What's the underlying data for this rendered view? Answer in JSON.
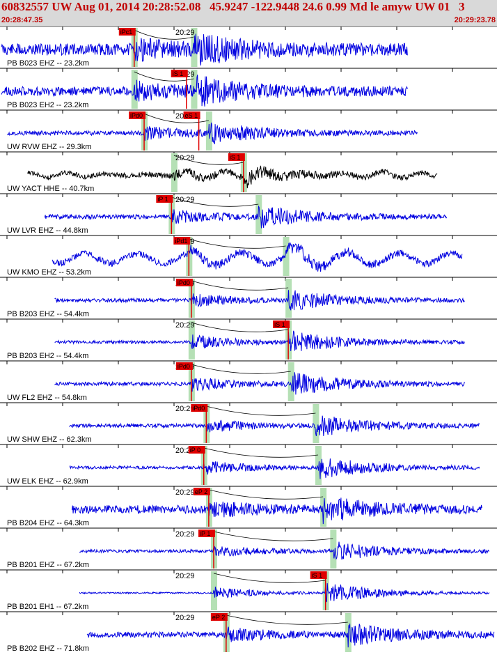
{
  "header": {
    "title": "60832557 UW Aug 01, 2014 20:28:52.08   45.9247 -122.9448 24.6 0.99 Md le amyw UW 01   3",
    "start_time": "20:28:47.35",
    "end_time": "20:29:23.78"
  },
  "minute_label": "20:29",
  "colors": {
    "trace": "#0000e0",
    "trace_alt": "#000000",
    "pick": "#e00000",
    "window": "#b5e0b5",
    "header_bg": "#d9d9d9",
    "title": "#c00000"
  },
  "traces": [
    {
      "label": "PB B023 EHZ -- 23.2km",
      "color": "#0000e0",
      "start": 0.003,
      "end": 0.82,
      "p_t": 0.27,
      "s_t": 0.39,
      "amp": 0.32,
      "amp_s": 0.7,
      "seed": 11,
      "picks": [
        {
          "text": "iPc1",
          "t": 0.27
        }
      ]
    },
    {
      "label": "PB B023 EH2 -- 23.2km",
      "color": "#0000e0",
      "start": 0.003,
      "end": 0.82,
      "p_t": 0.27,
      "s_t": 0.39,
      "amp": 0.25,
      "amp_s": 0.7,
      "seed": 23,
      "picks": [
        {
          "text": "iS 1",
          "t": 0.375
        }
      ]
    },
    {
      "label": "UW RVW EHZ -- 29.3km",
      "color": "#0000e0",
      "start": 0.015,
      "end": 0.84,
      "p_t": 0.29,
      "s_t": 0.42,
      "amp": 0.12,
      "amp_s": 0.55,
      "seed": 37,
      "picks": [
        {
          "text": "iPd0",
          "t": 0.29
        },
        {
          "text": "eS 1",
          "t": 0.4
        }
      ]
    },
    {
      "label": "UW YACT HHE -- 40.7km",
      "color": "#000000",
      "start": 0.055,
      "end": 0.88,
      "p_t": 0.35,
      "s_t": 0.49,
      "amp": 0.28,
      "amp_s": 0.6,
      "seed": 41,
      "picks": [
        {
          "text": "iS 1",
          "t": 0.49
        }
      ]
    },
    {
      "label": "UW LVR EHZ -- 44.8km",
      "color": "#0000e0",
      "start": 0.09,
      "end": 0.9,
      "p_t": 0.345,
      "s_t": 0.52,
      "amp": 0.12,
      "amp_s": 0.55,
      "seed": 53,
      "picks": [
        {
          "text": "iP 1",
          "t": 0.345
        }
      ]
    },
    {
      "label": "UW KMO EHZ -- 53.2km",
      "color": "#0000e0",
      "start": 0.105,
      "end": 0.93,
      "p_t": 0.38,
      "s_t": 0.575,
      "amp": 0.42,
      "amp_s": 0.6,
      "seed": 67,
      "picks": [
        {
          "text": "iPd1",
          "t": 0.38
        }
      ]
    },
    {
      "label": "PB B203 EHZ -- 54.4km",
      "color": "#0000e0",
      "start": 0.11,
      "end": 0.935,
      "p_t": 0.385,
      "s_t": 0.58,
      "amp": 0.1,
      "amp_s": 0.55,
      "seed": 71,
      "picks": [
        {
          "text": "iPd0",
          "t": 0.385
        }
      ]
    },
    {
      "label": "PB B203 EH2 -- 54.4km",
      "color": "#0000e0",
      "start": 0.11,
      "end": 0.935,
      "p_t": 0.385,
      "s_t": 0.58,
      "amp": 0.08,
      "amp_s": 0.6,
      "seed": 83,
      "picks": [
        {
          "text": "iS 1",
          "t": 0.58
        }
      ]
    },
    {
      "label": "UW FL2 EHZ -- 54.8km",
      "color": "#0000e0",
      "start": 0.11,
      "end": 0.935,
      "p_t": 0.385,
      "s_t": 0.585,
      "amp": 0.1,
      "amp_s": 0.6,
      "seed": 97,
      "picks": [
        {
          "text": "iPd0",
          "t": 0.385
        }
      ]
    },
    {
      "label": "UW SHW EHZ -- 62.3km",
      "color": "#0000e0",
      "start": 0.14,
      "end": 0.965,
      "p_t": 0.415,
      "s_t": 0.635,
      "amp": 0.1,
      "amp_s": 0.55,
      "seed": 101,
      "picks": [
        {
          "text": "iPd0",
          "t": 0.415
        }
      ]
    },
    {
      "label": "UW ELK EHZ -- 62.9km",
      "color": "#0000e0",
      "start": 0.14,
      "end": 0.965,
      "p_t": 0.41,
      "s_t": 0.64,
      "amp": 0.08,
      "amp_s": 0.6,
      "seed": 113,
      "picks": [
        {
          "text": "iP 0",
          "t": 0.41
        }
      ]
    },
    {
      "label": "PB B204 EHZ -- 64.3km",
      "color": "#0000e0",
      "start": 0.145,
      "end": 0.97,
      "p_t": 0.42,
      "s_t": 0.65,
      "amp": 0.22,
      "amp_s": 0.6,
      "seed": 127,
      "picks": [
        {
          "text": "eP 2",
          "t": 0.42
        }
      ]
    },
    {
      "label": "PB B201 EHZ -- 67.2km",
      "color": "#0000e0",
      "start": 0.16,
      "end": 0.985,
      "p_t": 0.43,
      "s_t": 0.67,
      "amp": 0.08,
      "amp_s": 0.5,
      "seed": 131,
      "picks": [
        {
          "text": "iP 1",
          "t": 0.43
        }
      ]
    },
    {
      "label": "PB B201 EH1 -- 67.2km",
      "color": "#0000e0",
      "start": 0.16,
      "end": 0.985,
      "p_t": 0.43,
      "s_t": 0.655,
      "amp": 0.04,
      "amp_s": 0.55,
      "seed": 149,
      "picks": [
        {
          "text": "iS 1",
          "t": 0.655
        }
      ]
    },
    {
      "label": "PB B202 EHZ -- 71.8km",
      "color": "#0000e0",
      "start": 0.175,
      "end": 0.995,
      "p_t": 0.455,
      "s_t": 0.7,
      "amp": 0.15,
      "amp_s": 0.55,
      "seed": 157,
      "picks": [
        {
          "text": "eP 2",
          "t": 0.455
        }
      ]
    }
  ]
}
